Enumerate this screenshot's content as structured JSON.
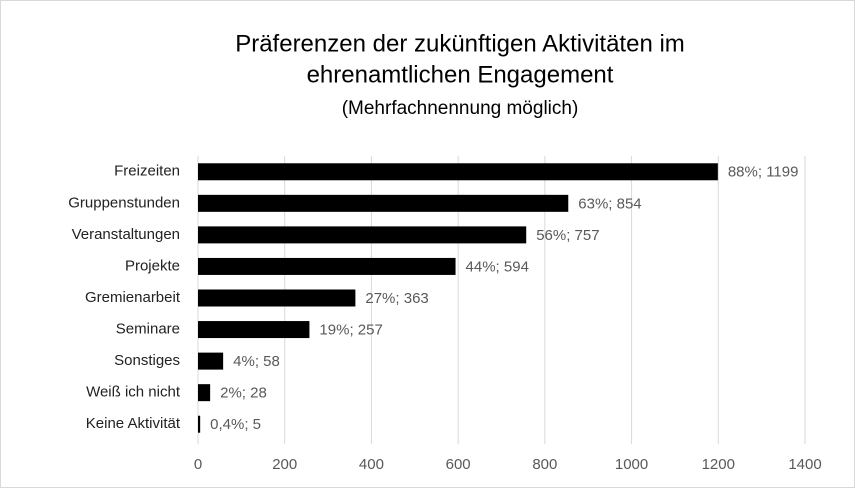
{
  "chart_data": {
    "type": "bar",
    "orientation": "horizontal",
    "title": [
      "Präferenzen der zukünftigen Aktivitäten im",
      "ehrenamtlichen Engagement"
    ],
    "subtitle": "(Mehrfachnennung möglich)",
    "categories": [
      "Freizeiten",
      "Gruppenstunden",
      "Veranstaltungen",
      "Projekte",
      "Gremienarbeit",
      "Seminare",
      "Sonstiges",
      "Weiß ich nicht",
      "Keine Aktivität"
    ],
    "values": [
      1199,
      854,
      757,
      594,
      363,
      257,
      58,
      28,
      5
    ],
    "value_labels": [
      "88%; 1199",
      "63%; 854",
      "56%; 757",
      "44%; 594",
      "27%; 363",
      "19%; 257",
      "4%; 58",
      "2%; 28",
      "0,4%; 5"
    ],
    "color": "#000000",
    "xlim": [
      0,
      1400
    ],
    "xticks": [
      0,
      200,
      400,
      600,
      800,
      1000,
      1200,
      1400
    ],
    "grid": true
  }
}
